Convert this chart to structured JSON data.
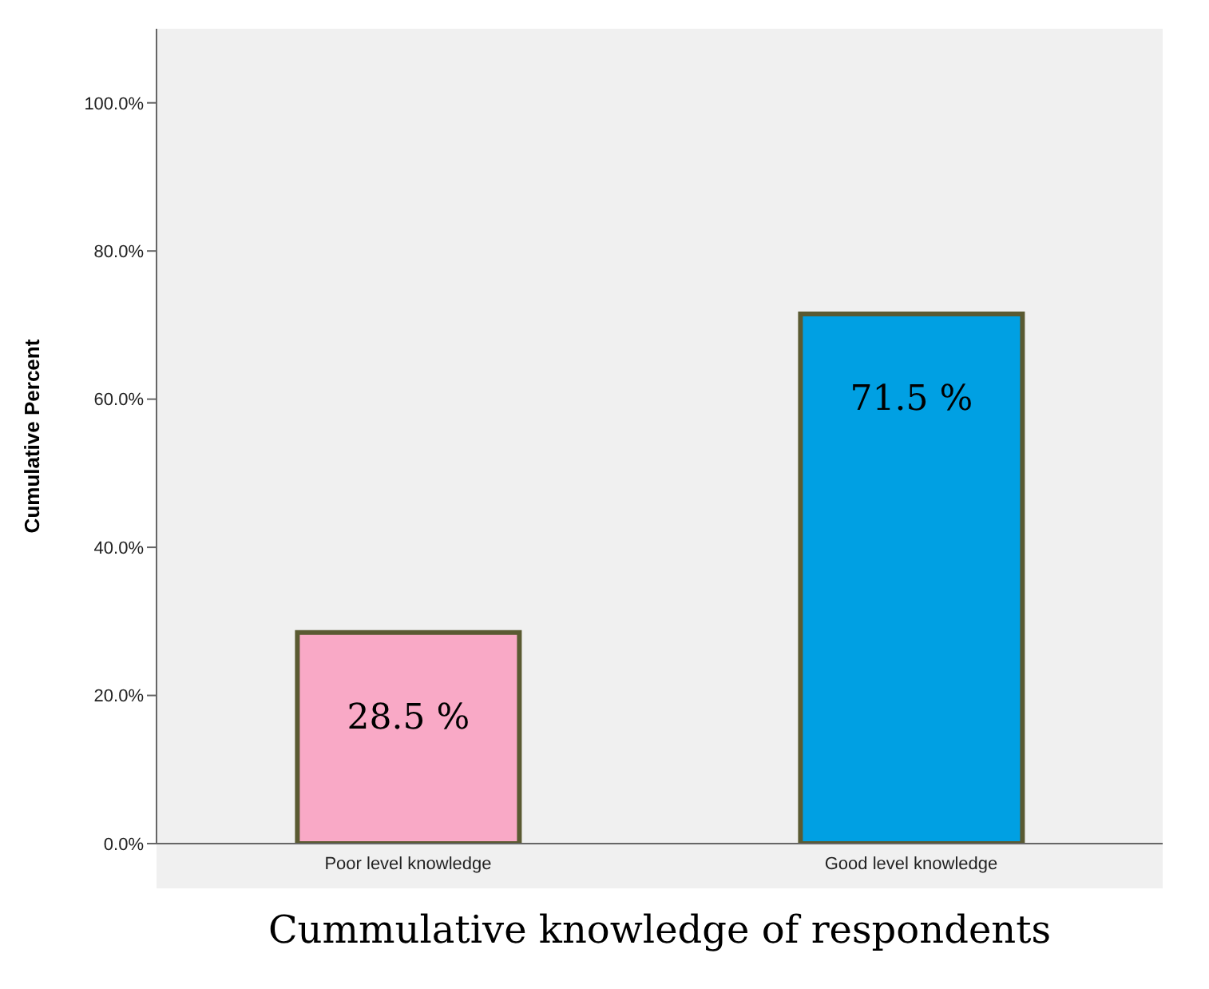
{
  "chart_data": {
    "type": "bar",
    "xlabel": "Cummulative knowledge of respondents",
    "ylabel": "Cumulative Percent",
    "categories": [
      "Poor level knowledge",
      "Good level knowledge"
    ],
    "values": [
      28.5,
      71.5
    ],
    "colors": [
      "#f9a9c6",
      "#00a0e3"
    ],
    "value_labels": [
      "28.5 %",
      "71.5 %"
    ],
    "ylim": [
      0,
      110
    ],
    "yticks": [
      {
        "value": 0,
        "label": "0.0%"
      },
      {
        "value": 20,
        "label": "20.0%"
      },
      {
        "value": 40,
        "label": "40.0%"
      },
      {
        "value": 60,
        "label": "60.0%"
      },
      {
        "value": 80,
        "label": "80.0%"
      },
      {
        "value": 100,
        "label": "100.0%"
      }
    ],
    "grid": false,
    "legend": false
  }
}
